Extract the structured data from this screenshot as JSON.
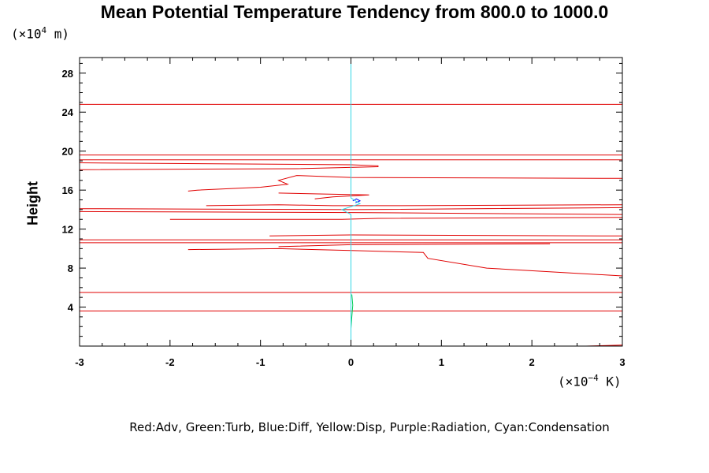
{
  "chart_data": {
    "type": "line",
    "title": "Mean Potential Temperature Tendency from 800.0 to 1000.0",
    "ylabel": "Height",
    "y_unit": {
      "prefix": "(×10",
      "exp": "4",
      "suffix": " m)"
    },
    "x_unit": {
      "prefix": "(×10",
      "exp": "−4",
      "suffix": " K)"
    },
    "xlim": [
      -3,
      3
    ],
    "ylim": [
      0,
      29.6
    ],
    "x_ticks": [
      -3,
      -2,
      -1,
      0,
      1,
      2,
      3
    ],
    "x_tick_labels": [
      "-3",
      "-2",
      "-1",
      "0",
      "1",
      "2",
      "3"
    ],
    "y_ticks": [
      4,
      8,
      12,
      16,
      20,
      24,
      28
    ],
    "y_tick_labels": [
      "4",
      "8",
      "12",
      "16",
      "20",
      "24",
      "28"
    ],
    "legend_text": "Red:Adv, Green:Turb, Blue:Diff, Yellow:Disp, Purple:Radiation, Cyan:Condensation",
    "colors": {
      "advection": "#e00000",
      "turbulence": "#00cc55",
      "diffusion": "#0000ff",
      "condensation": "#33d6e6",
      "axes": "#000000"
    },
    "series": [
      {
        "name": "Advection",
        "key": "advection",
        "segments": [
          [
            [
              -3,
              3.6
            ],
            [
              3,
              3.6
            ]
          ],
          [
            [
              -3,
              5.5
            ],
            [
              3,
              5.5
            ]
          ],
          [
            [
              -3,
              10.6
            ],
            [
              3,
              10.6
            ]
          ],
          [
            [
              -3,
              10.9
            ],
            [
              3,
              10.9
            ]
          ],
          [
            [
              -3,
              24.8
            ],
            [
              3,
              24.8
            ]
          ],
          [
            [
              -3,
              19.6
            ],
            [
              3,
              19.6
            ]
          ],
          [
            [
              -3,
              19.1
            ],
            [
              3,
              19.1
            ]
          ],
          [
            [
              -3,
              18.8
            ],
            [
              0,
              18.6
            ],
            [
              0.3,
              18.5
            ],
            [
              0.3,
              18.4
            ],
            [
              -0.6,
              18.2
            ],
            [
              -3,
              18.1
            ]
          ],
          [
            [
              3,
              17.2
            ],
            [
              0,
              17.3
            ],
            [
              -0.6,
              17.5
            ],
            [
              -0.8,
              17.0
            ],
            [
              -0.7,
              16.6
            ],
            [
              -1.0,
              16.3
            ],
            [
              -1.7,
              16.0
            ],
            [
              -1.8,
              15.9
            ]
          ],
          [
            [
              -0.8,
              15.7
            ],
            [
              -0.3,
              15.6
            ],
            [
              0.2,
              15.5
            ],
            [
              -0.2,
              15.3
            ],
            [
              -0.4,
              15.1
            ]
          ],
          [
            [
              -1.6,
              14.4
            ],
            [
              -0.8,
              14.5
            ],
            [
              -0.2,
              14.4
            ],
            [
              0.4,
              14.4
            ],
            [
              3,
              14.5
            ]
          ],
          [
            [
              -3,
              14.1
            ],
            [
              0,
              14.0
            ],
            [
              3,
              14.2
            ]
          ],
          [
            [
              -3,
              13.8
            ],
            [
              0,
              13.7
            ],
            [
              3,
              13.5
            ]
          ],
          [
            [
              3,
              13.2
            ],
            [
              0.3,
              13.1
            ],
            [
              -0.1,
              13.0
            ],
            [
              -2,
              13.0
            ]
          ],
          [
            [
              -0.9,
              11.3
            ],
            [
              0,
              11.4
            ],
            [
              3,
              11.3
            ]
          ],
          [
            [
              -1.8,
              9.9
            ],
            [
              -0.8,
              10.0
            ],
            [
              0,
              9.8
            ],
            [
              0.8,
              9.6
            ],
            [
              0.85,
              9.0
            ],
            [
              1.5,
              8.0
            ],
            [
              3,
              7.2
            ]
          ],
          [
            [
              -0.8,
              10.2
            ],
            [
              0,
              10.4
            ],
            [
              2.2,
              10.5
            ]
          ],
          [
            [
              2.6,
              0.0
            ],
            [
              3,
              0.1
            ]
          ]
        ]
      },
      {
        "name": "Turbulence",
        "key": "turbulence",
        "segments": [
          [
            [
              0,
              1.8
            ],
            [
              0.01,
              3.0
            ],
            [
              0.02,
              4.2
            ],
            [
              0.01,
              5.3
            ]
          ]
        ]
      },
      {
        "name": "Diffusion",
        "key": "diffusion",
        "segments": [
          [
            [
              0.05,
              14.7
            ],
            [
              0.1,
              14.9
            ],
            [
              0.06,
              15.1
            ],
            [
              0.02,
              14.9
            ]
          ]
        ]
      },
      {
        "name": "Condensation",
        "key": "condensation",
        "segments": [
          [
            [
              0,
              29.6
            ],
            [
              0,
              15.2
            ],
            [
              0.1,
              14.6
            ],
            [
              -0.1,
              14.0
            ],
            [
              0,
              13.5
            ],
            [
              0,
              0
            ]
          ]
        ]
      }
    ]
  }
}
